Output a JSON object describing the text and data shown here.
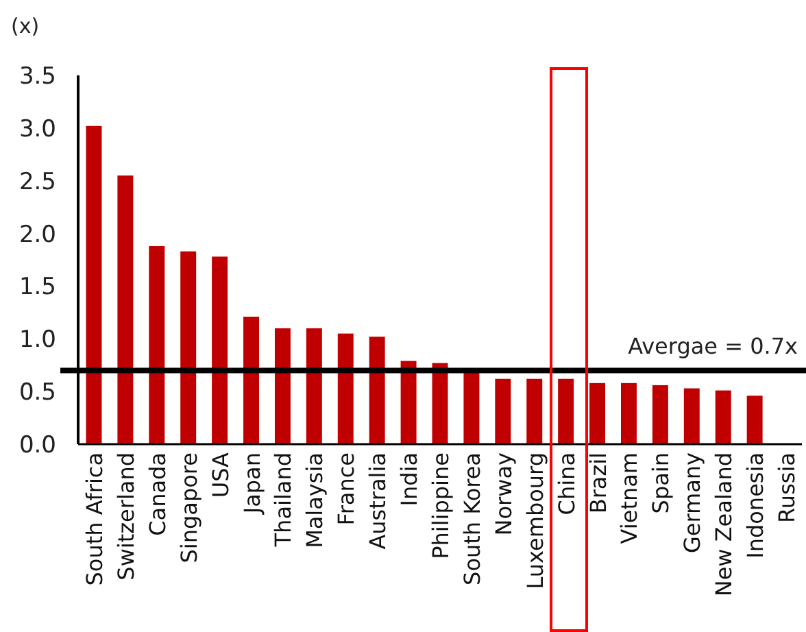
{
  "chart_data": {
    "type": "bar",
    "ylabel": "(x)",
    "categories": [
      "South Africa",
      "Switzerland",
      "Canada",
      "Singapore",
      "USA",
      "Japan",
      "Thailand",
      "Malaysia",
      "France",
      "Australia",
      "India",
      "Philippine",
      "South Korea",
      "Norway",
      "Luxembourg",
      "China",
      "Brazil",
      "Vietnam",
      "Spain",
      "Germany",
      "New Zealand",
      "Indonesia",
      "Russia"
    ],
    "values": [
      3.02,
      2.55,
      1.88,
      1.83,
      1.78,
      1.21,
      1.1,
      1.1,
      1.05,
      1.02,
      0.79,
      0.77,
      0.69,
      0.62,
      0.62,
      0.62,
      0.58,
      0.58,
      0.56,
      0.53,
      0.51,
      0.46,
      null
    ],
    "color": "#c00000",
    "ylim": [
      0,
      3.5
    ],
    "yticks": [
      {
        "value": 0,
        "label": "0.0"
      },
      0.5,
      {
        "value": 1,
        "label": "1.0"
      },
      1.5,
      {
        "value": 2,
        "label": "2.0"
      },
      2.5,
      {
        "value": 3,
        "label": "3.0"
      },
      3.5
    ],
    "ref_lines": [
      {
        "axis": "y",
        "value": 0.7,
        "label": "Avergae = 0.7x",
        "color": "#000000"
      }
    ]
  }
}
